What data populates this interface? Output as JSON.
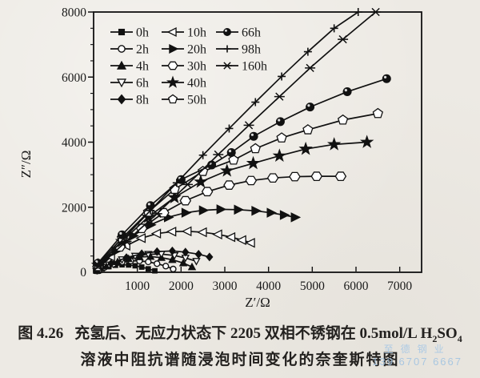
{
  "colors": {
    "paper": "#edeae4",
    "ink": "#1a1a1a",
    "watermark": "#a3c6e6",
    "series_color": "#111111"
  },
  "watermark": {
    "company": "至德钢业",
    "phone": "139 6707 6667"
  },
  "caption": {
    "figure_no": "图 4.26",
    "line1_text": "充氢后、无应力状态下 2205 双相不锈钢在 0.5mol/L ",
    "formula": {
      "base1": "H",
      "sub1": "2",
      "base2": "SO",
      "sub2": "4"
    },
    "line2": "溶液中阻抗谱随浸泡时间变化的奈奎斯特图"
  },
  "chart_data": {
    "type": "scatter",
    "title": "",
    "xlabel": "Z′/Ω",
    "ylabel": "Z″/Ω",
    "xlim": [
      0,
      7500
    ],
    "ylim": [
      0,
      8000
    ],
    "x_ticks": [
      1000,
      2000,
      3000,
      4000,
      5000,
      6000,
      7000
    ],
    "y_major_ticks": [
      2000,
      4000,
      6000,
      8000
    ],
    "y_minor_step": 500,
    "origin_label": "0",
    "grid": false,
    "legend_position": "top-left-inside",
    "legend_columns": 3,
    "series": [
      {
        "name": "0h",
        "marker": "square-filled",
        "msize": 0.75,
        "points": [
          [
            80,
            30
          ],
          [
            200,
            110
          ],
          [
            350,
            175
          ],
          [
            500,
            215
          ],
          [
            650,
            230
          ],
          [
            800,
            225
          ],
          [
            950,
            200
          ],
          [
            1100,
            160
          ],
          [
            1250,
            105
          ],
          [
            1400,
            45
          ]
        ]
      },
      {
        "name": "2h",
        "marker": "circle-open",
        "msize": 0.75,
        "points": [
          [
            80,
            40
          ],
          [
            250,
            150
          ],
          [
            450,
            250
          ],
          [
            650,
            315
          ],
          [
            850,
            350
          ],
          [
            1050,
            350
          ],
          [
            1250,
            320
          ],
          [
            1450,
            265
          ],
          [
            1650,
            190
          ],
          [
            1820,
            100
          ]
        ]
      },
      {
        "name": "4h",
        "marker": "triangle-up-filled",
        "msize": 0.75,
        "points": [
          [
            80,
            50
          ],
          [
            300,
            190
          ],
          [
            550,
            320
          ],
          [
            800,
            415
          ],
          [
            1050,
            470
          ],
          [
            1300,
            485
          ],
          [
            1550,
            450
          ],
          [
            1800,
            385
          ],
          [
            2050,
            285
          ],
          [
            2250,
            165
          ]
        ]
      },
      {
        "name": "6h",
        "marker": "triangle-down-open",
        "msize": 0.75,
        "points": [
          [
            80,
            60
          ],
          [
            350,
            230
          ],
          [
            650,
            390
          ],
          [
            950,
            500
          ],
          [
            1250,
            555
          ],
          [
            1550,
            560
          ],
          [
            1850,
            515
          ],
          [
            2100,
            440
          ],
          [
            2350,
            340
          ]
        ]
      },
      {
        "name": "8h",
        "marker": "diamond-filled",
        "msize": 0.75,
        "points": [
          [
            80,
            70
          ],
          [
            400,
            270
          ],
          [
            750,
            450
          ],
          [
            1100,
            570
          ],
          [
            1450,
            635
          ],
          [
            1800,
            655
          ],
          [
            2100,
            620
          ],
          [
            2400,
            555
          ],
          [
            2650,
            470
          ]
        ]
      },
      {
        "name": "10h",
        "marker": "triangle-left-open",
        "msize": 0.95,
        "points": [
          [
            100,
            120
          ],
          [
            400,
            480
          ],
          [
            750,
            820
          ],
          [
            1100,
            1050
          ],
          [
            1450,
            1190
          ],
          [
            1800,
            1250
          ],
          [
            2150,
            1260
          ],
          [
            2500,
            1230
          ],
          [
            2850,
            1165
          ],
          [
            3150,
            1080
          ],
          [
            3400,
            990
          ],
          [
            3600,
            905
          ]
        ]
      },
      {
        "name": "20h",
        "marker": "triangle-right-filled",
        "msize": 0.95,
        "points": [
          [
            100,
            150
          ],
          [
            500,
            650
          ],
          [
            900,
            1120
          ],
          [
            1300,
            1460
          ],
          [
            1700,
            1690
          ],
          [
            2100,
            1830
          ],
          [
            2500,
            1905
          ],
          [
            2900,
            1935
          ],
          [
            3300,
            1925
          ],
          [
            3700,
            1890
          ],
          [
            4050,
            1830
          ],
          [
            4350,
            1760
          ],
          [
            4600,
            1690
          ]
        ]
      },
      {
        "name": "30h",
        "marker": "hexagon-open",
        "msize": 1,
        "points": [
          [
            100,
            180
          ],
          [
            600,
            780
          ],
          [
            1100,
            1350
          ],
          [
            1600,
            1830
          ],
          [
            2100,
            2200
          ],
          [
            2600,
            2480
          ],
          [
            3100,
            2680
          ],
          [
            3600,
            2820
          ],
          [
            4100,
            2900
          ],
          [
            4600,
            2940
          ],
          [
            5100,
            2950
          ],
          [
            5650,
            2950
          ]
        ]
      },
      {
        "name": "40h",
        "marker": "star-filled",
        "msize": 1,
        "points": [
          [
            100,
            220
          ],
          [
            650,
            950
          ],
          [
            1250,
            1700
          ],
          [
            1850,
            2300
          ],
          [
            2450,
            2780
          ],
          [
            3050,
            3120
          ],
          [
            3650,
            3350
          ],
          [
            4250,
            3580
          ],
          [
            4850,
            3790
          ],
          [
            5500,
            3930
          ],
          [
            6250,
            4000
          ]
        ]
      },
      {
        "name": "50h",
        "marker": "pentagon-open",
        "msize": 1,
        "points": [
          [
            100,
            250
          ],
          [
            650,
            1050
          ],
          [
            1250,
            1850
          ],
          [
            1850,
            2550
          ],
          [
            2500,
            3100
          ],
          [
            3200,
            3450
          ],
          [
            3700,
            3800
          ],
          [
            4300,
            4130
          ],
          [
            4900,
            4380
          ],
          [
            5700,
            4680
          ],
          [
            6500,
            4880
          ]
        ]
      },
      {
        "name": "66h",
        "marker": "sphere-filled",
        "msize": 1,
        "points": [
          [
            100,
            280
          ],
          [
            650,
            1150
          ],
          [
            1300,
            2050
          ],
          [
            2000,
            2850
          ],
          [
            2700,
            3300
          ],
          [
            3150,
            3680
          ],
          [
            3660,
            4180
          ],
          [
            4270,
            4630
          ],
          [
            4950,
            5080
          ],
          [
            5800,
            5550
          ],
          [
            6700,
            5950
          ]
        ]
      },
      {
        "name": "98h",
        "marker": "plus",
        "msize": 1,
        "points": [
          [
            150,
            250
          ],
          [
            700,
            1050
          ],
          [
            1300,
            1900
          ],
          [
            1900,
            2750
          ],
          [
            2500,
            3600
          ],
          [
            3100,
            4420
          ],
          [
            3700,
            5230
          ],
          [
            4300,
            6020
          ],
          [
            4900,
            6780
          ],
          [
            5500,
            7500
          ],
          [
            6050,
            8000
          ]
        ]
      },
      {
        "name": "160h",
        "marker": "x-cross",
        "msize": 1,
        "points": [
          [
            120,
            200
          ],
          [
            750,
            950
          ],
          [
            1450,
            1800
          ],
          [
            2150,
            2700
          ],
          [
            2850,
            3620
          ],
          [
            3550,
            4520
          ],
          [
            4250,
            5400
          ],
          [
            4950,
            6280
          ],
          [
            5700,
            7160
          ],
          [
            6450,
            8000
          ]
        ]
      }
    ],
    "legend": [
      {
        "label": "0h",
        "marker": "square-filled"
      },
      {
        "label": "2h",
        "marker": "circle-open"
      },
      {
        "label": "4h",
        "marker": "triangle-up-filled"
      },
      {
        "label": "6h",
        "marker": "triangle-down-open"
      },
      {
        "label": "8h",
        "marker": "diamond-filled"
      },
      {
        "label": "10h",
        "marker": "triangle-left-open"
      },
      {
        "label": "20h",
        "marker": "triangle-right-filled"
      },
      {
        "label": "30h",
        "marker": "hexagon-open"
      },
      {
        "label": "40h",
        "marker": "star-filled"
      },
      {
        "label": "50h",
        "marker": "pentagon-open"
      },
      {
        "label": "66h",
        "marker": "sphere-filled"
      },
      {
        "label": "98h",
        "marker": "plus"
      },
      {
        "label": "160h",
        "marker": "x-cross"
      }
    ]
  }
}
